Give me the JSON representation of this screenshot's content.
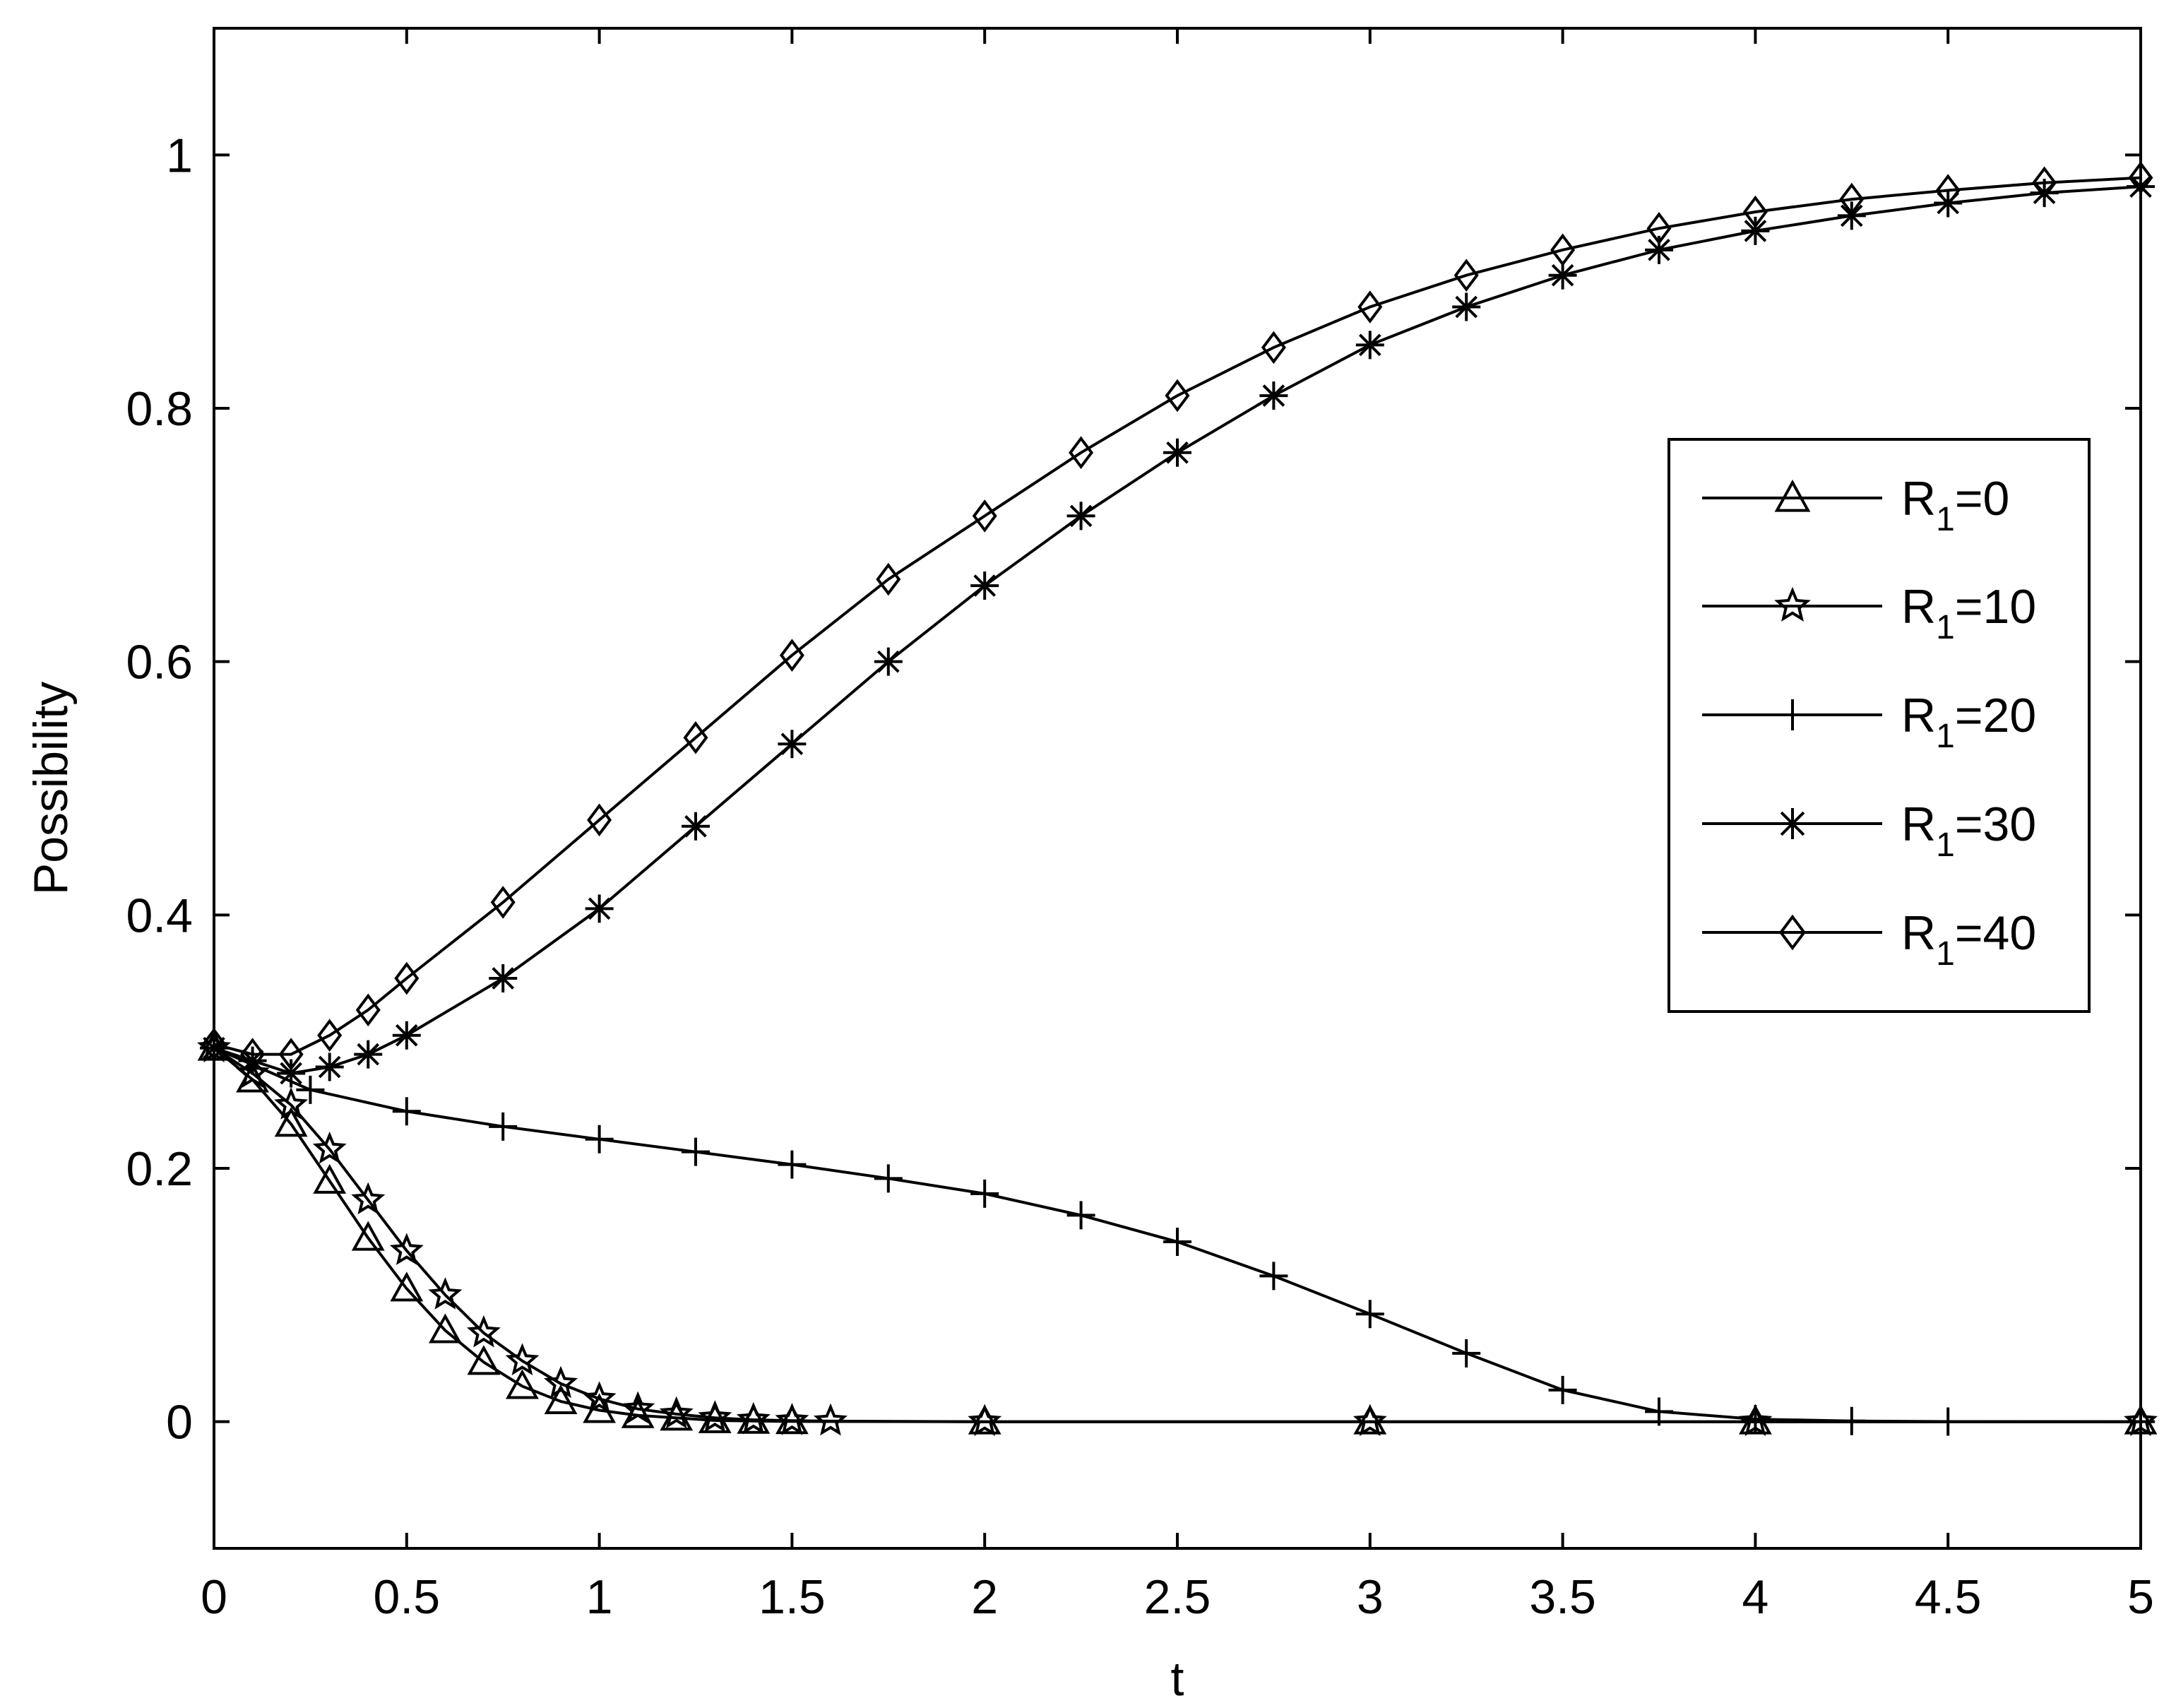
{
  "chart_data": {
    "type": "line",
    "title": "",
    "xlabel": "t",
    "ylabel": "Possibility",
    "xlim": [
      0,
      5
    ],
    "ylim": [
      -0.1,
      1.1
    ],
    "xticks": [
      0,
      0.5,
      1,
      1.5,
      2,
      2.5,
      3,
      3.5,
      4,
      4.5,
      5
    ],
    "xtick_labels": [
      "0",
      "0.5",
      "1",
      "1.5",
      "2",
      "2.5",
      "3",
      "3.5",
      "4",
      "4.5",
      "5"
    ],
    "yticks": [
      0,
      0.2,
      0.4,
      0.6,
      0.8,
      1
    ],
    "ytick_labels": [
      "0",
      "0.2",
      "0.4",
      "0.6",
      "0.8",
      "1"
    ],
    "grid": false,
    "legend_position": "right-center",
    "series": [
      {
        "name": "R1=0",
        "name_main": "R",
        "name_sub": "1",
        "name_tail": "=0",
        "marker": "triangle",
        "x": [
          0,
          0.1,
          0.2,
          0.3,
          0.4,
          0.5,
          0.6,
          0.7,
          0.8,
          0.9,
          1.0,
          1.1,
          1.2,
          1.3,
          1.4,
          1.5,
          2,
          3,
          4,
          5
        ],
        "y": [
          0.295,
          0.27,
          0.235,
          0.19,
          0.145,
          0.105,
          0.072,
          0.047,
          0.028,
          0.016,
          0.009,
          0.005,
          0.003,
          0.001,
          0.0005,
          0.0002,
          0,
          0,
          0,
          0
        ]
      },
      {
        "name": "R1=10",
        "name_main": "R",
        "name_sub": "1",
        "name_tail": "=10",
        "marker": "star",
        "x": [
          0,
          0.1,
          0.2,
          0.3,
          0.4,
          0.5,
          0.6,
          0.7,
          0.8,
          0.9,
          1.0,
          1.1,
          1.2,
          1.3,
          1.4,
          1.5,
          1.6,
          2,
          3,
          4,
          5
        ],
        "y": [
          0.295,
          0.275,
          0.25,
          0.215,
          0.175,
          0.135,
          0.1,
          0.07,
          0.048,
          0.03,
          0.018,
          0.01,
          0.006,
          0.003,
          0.0015,
          0.0008,
          0.0004,
          0,
          0,
          0,
          0
        ]
      },
      {
        "name": "R1=20",
        "name_main": "R",
        "name_sub": "1",
        "name_tail": "=20",
        "marker": "plus",
        "x": [
          0,
          0.25,
          0.5,
          0.75,
          1.0,
          1.25,
          1.5,
          1.75,
          2.0,
          2.25,
          2.5,
          2.75,
          3.0,
          3.25,
          3.5,
          3.75,
          4.0,
          4.25,
          4.5,
          5
        ],
        "y": [
          0.295,
          0.262,
          0.245,
          0.233,
          0.223,
          0.213,
          0.203,
          0.192,
          0.18,
          0.163,
          0.142,
          0.115,
          0.085,
          0.054,
          0.025,
          0.008,
          0.002,
          0.0005,
          0.0001,
          0
        ]
      },
      {
        "name": "R1=30",
        "name_main": "R",
        "name_sub": "1",
        "name_tail": "=30",
        "marker": "asterisk",
        "x": [
          0,
          0.1,
          0.2,
          0.3,
          0.4,
          0.5,
          0.75,
          1.0,
          1.25,
          1.5,
          1.75,
          2.0,
          2.25,
          2.5,
          2.75,
          3.0,
          3.25,
          3.5,
          3.75,
          4.0,
          4.25,
          4.5,
          4.75,
          5.0
        ],
        "y": [
          0.295,
          0.285,
          0.275,
          0.28,
          0.29,
          0.305,
          0.35,
          0.405,
          0.47,
          0.535,
          0.6,
          0.66,
          0.715,
          0.765,
          0.81,
          0.85,
          0.88,
          0.905,
          0.925,
          0.94,
          0.952,
          0.962,
          0.97,
          0.975
        ]
      },
      {
        "name": "R1=40",
        "name_main": "R",
        "name_sub": "1",
        "name_tail": "=40",
        "marker": "diamond",
        "x": [
          0,
          0.1,
          0.2,
          0.3,
          0.4,
          0.5,
          0.75,
          1.0,
          1.25,
          1.5,
          1.75,
          2.0,
          2.25,
          2.5,
          2.75,
          3.0,
          3.25,
          3.5,
          3.75,
          4.0,
          4.25,
          4.5,
          4.75,
          5.0
        ],
        "y": [
          0.298,
          0.29,
          0.29,
          0.305,
          0.325,
          0.35,
          0.41,
          0.475,
          0.54,
          0.605,
          0.665,
          0.715,
          0.765,
          0.81,
          0.848,
          0.88,
          0.905,
          0.925,
          0.942,
          0.955,
          0.965,
          0.972,
          0.978,
          0.982
        ]
      }
    ]
  }
}
